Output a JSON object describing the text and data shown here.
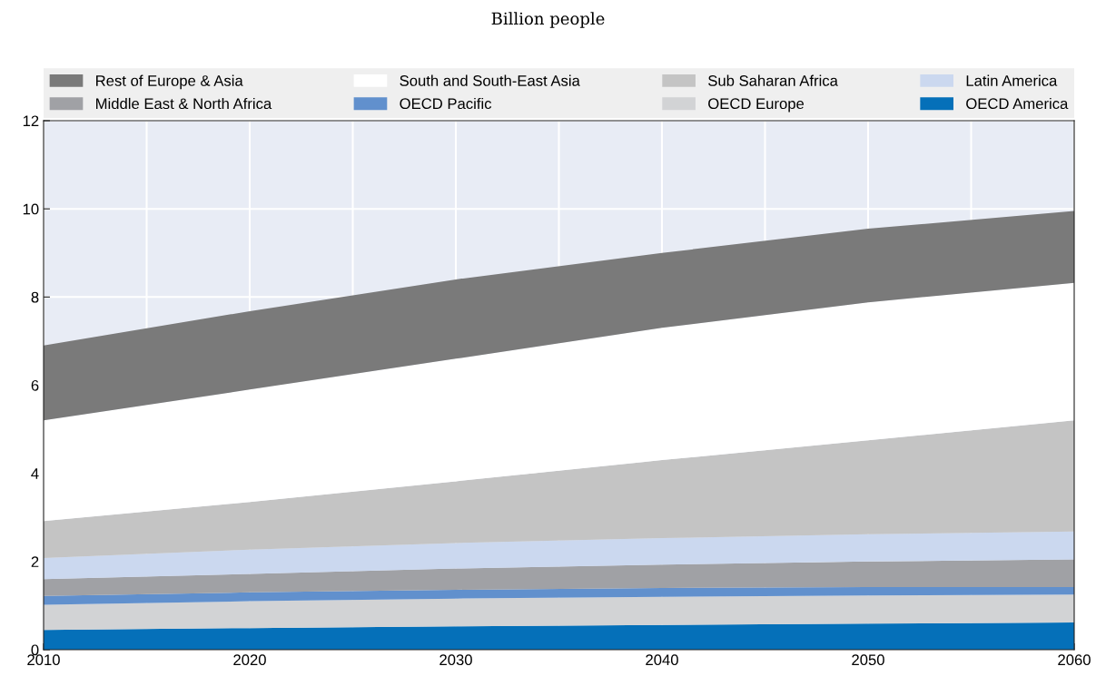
{
  "chart_data": {
    "type": "area",
    "stacked": true,
    "subtitle": "Billion people",
    "x": [
      2010,
      2020,
      2030,
      2040,
      2050,
      2060
    ],
    "series": [
      {
        "name": "OECD America",
        "color": "#0570b9",
        "values": [
          0.45,
          0.49,
          0.53,
          0.56,
          0.59,
          0.62
        ]
      },
      {
        "name": "OECD Europe",
        "color": "#d2d3d5",
        "values": [
          0.57,
          0.61,
          0.63,
          0.64,
          0.64,
          0.63
        ]
      },
      {
        "name": "OECD Pacific",
        "color": "#6190cd",
        "values": [
          0.2,
          0.2,
          0.2,
          0.2,
          0.19,
          0.17
        ]
      },
      {
        "name": "Middle East & North Africa",
        "color": "#a0a1a5",
        "values": [
          0.38,
          0.42,
          0.48,
          0.53,
          0.58,
          0.63
        ]
      },
      {
        "name": "Latin America",
        "color": "#cbd8ef",
        "values": [
          0.48,
          0.55,
          0.58,
          0.6,
          0.62,
          0.63
        ]
      },
      {
        "name": "Sub Saharan Africa",
        "color": "#c4c4c4",
        "values": [
          0.84,
          1.08,
          1.4,
          1.77,
          2.13,
          2.52
        ]
      },
      {
        "name": "South and South-East Asia",
        "color": "#ffffff",
        "values": [
          2.28,
          2.55,
          2.78,
          3.0,
          3.13,
          3.12
        ]
      },
      {
        "name": "Rest of Europe & Asia",
        "color": "#7a7a7a",
        "values": [
          1.7,
          1.78,
          1.8,
          1.7,
          1.67,
          1.63
        ]
      }
    ],
    "xlim": [
      2010,
      2060
    ],
    "ylim": [
      0,
      12
    ],
    "xticks": [
      2010,
      {
        "value": 2015,
        "label": null
      },
      2020,
      {
        "value": 2025,
        "label": null
      },
      2030,
      {
        "value": 2035,
        "label": null
      },
      2040,
      {
        "value": 2045,
        "label": null
      },
      2050,
      {
        "value": 2055,
        "label": null
      },
      2060
    ],
    "yticks": [
      0,
      2,
      4,
      6,
      8,
      10,
      12
    ],
    "grid": true,
    "legend": "top"
  }
}
